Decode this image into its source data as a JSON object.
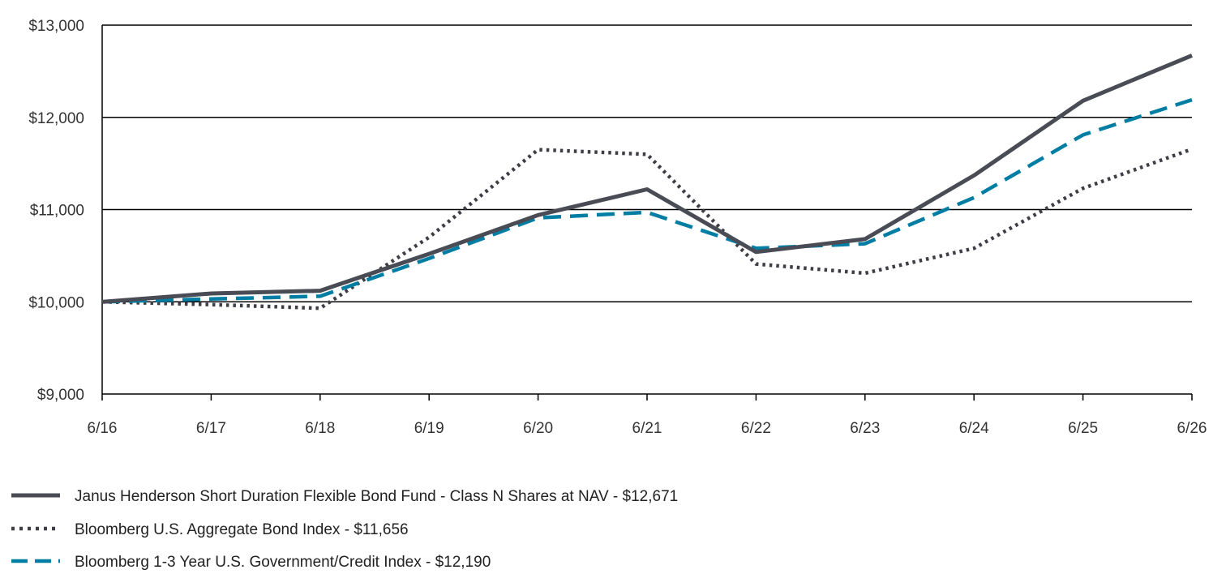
{
  "chart_data": {
    "type": "line",
    "title": "",
    "xlabel": "",
    "ylabel": "",
    "x": [
      "6/16",
      "6/17",
      "6/18",
      "6/19",
      "6/20",
      "6/21",
      "6/22",
      "6/23",
      "6/24",
      "6/25",
      "6/26"
    ],
    "ylim": [
      9000,
      13000
    ],
    "yticks": [
      9000,
      10000,
      11000,
      12000,
      13000
    ],
    "ytick_labels": [
      "$9,000",
      "$10,000",
      "$11,000",
      "$12,000",
      "$13,000"
    ],
    "grid": "horizontal",
    "legend_position": "bottom-left",
    "series": [
      {
        "name": "Janus Henderson Short Duration Flexible Bond Fund - Class N Shares at NAV - $12,671",
        "color": "#4a4c55",
        "style": "solid",
        "values": [
          10000,
          10090,
          10120,
          10520,
          10940,
          11220,
          10540,
          10680,
          11370,
          12180,
          12671
        ]
      },
      {
        "name": "Bloomberg U.S. Aggregate Bond Index - $11,656",
        "color": "#3e3f46",
        "style": "dotted",
        "values": [
          10000,
          9970,
          9930,
          10700,
          11650,
          11600,
          10410,
          10310,
          10580,
          11230,
          11656
        ]
      },
      {
        "name": "Bloomberg 1-3 Year U.S. Government/Credit Index - $12,190",
        "color": "#007da3",
        "style": "dashed",
        "values": [
          10000,
          10030,
          10060,
          10470,
          10910,
          10970,
          10580,
          10630,
          11130,
          11810,
          12190
        ]
      }
    ]
  }
}
